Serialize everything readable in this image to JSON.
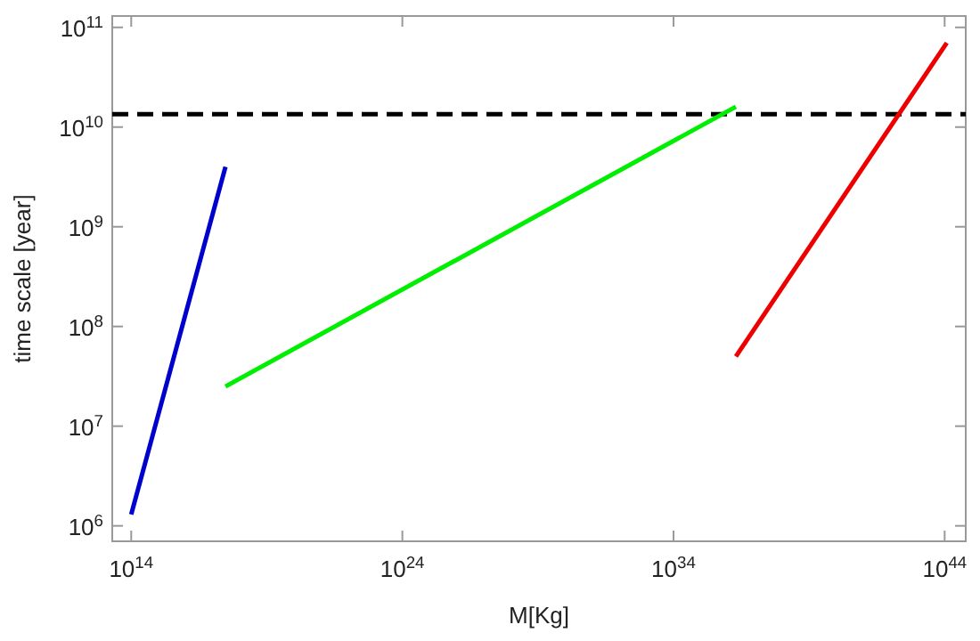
{
  "chart_data": {
    "type": "line",
    "xlabel": "M[Kg]",
    "ylabel": "time scale [year]",
    "log": "xy",
    "grid": false,
    "marker": "none",
    "line_style": "solid",
    "xlim": [
      20000000000000.0,
      6e+44
    ],
    "ylim": [
      700000.0,
      130000000000.0
    ],
    "xticks": [
      {
        "value": 100000000000000.0,
        "label": "10$^{14}$"
      },
      {
        "value": 1e+24,
        "label": "10$^{24}$"
      },
      {
        "value": 1e+34,
        "label": "10$^{34}$"
      },
      {
        "value": 1e+44,
        "label": "10$^{44}$"
      }
    ],
    "yticks": [
      {
        "value": 1000000.0,
        "label": "10$^{6}$"
      },
      {
        "value": 10000000.0,
        "label": "10$^{7}$"
      },
      {
        "value": 100000000.0,
        "label": "10$^{8}$"
      },
      {
        "value": 1000000000.0,
        "label": "10$^{9}$"
      },
      {
        "value": 10000000000.0,
        "label": "10$^{10}$"
      },
      {
        "value": 100000000000.0,
        "label": "10$^{11}$"
      }
    ],
    "series": [
      {
        "color": "#0000cc",
        "x": [
          100000000000000.0,
          3e+17
        ],
        "values": [
          1300000.0,
          4000000000.0
        ]
      },
      {
        "color": "#00ee00",
        "x": [
          3e+17,
          2e+36
        ],
        "values": [
          25000000.0,
          16000000000.0
        ]
      },
      {
        "color": "#ee0000",
        "x": [
          2e+36,
          1.2e+44
        ],
        "values": [
          50000000.0,
          70000000000.0
        ]
      }
    ],
    "ref_lines": [
      {
        "axis": "y",
        "value": 13500000000.0,
        "color": "#000000",
        "line_style": "dashed"
      }
    ]
  }
}
